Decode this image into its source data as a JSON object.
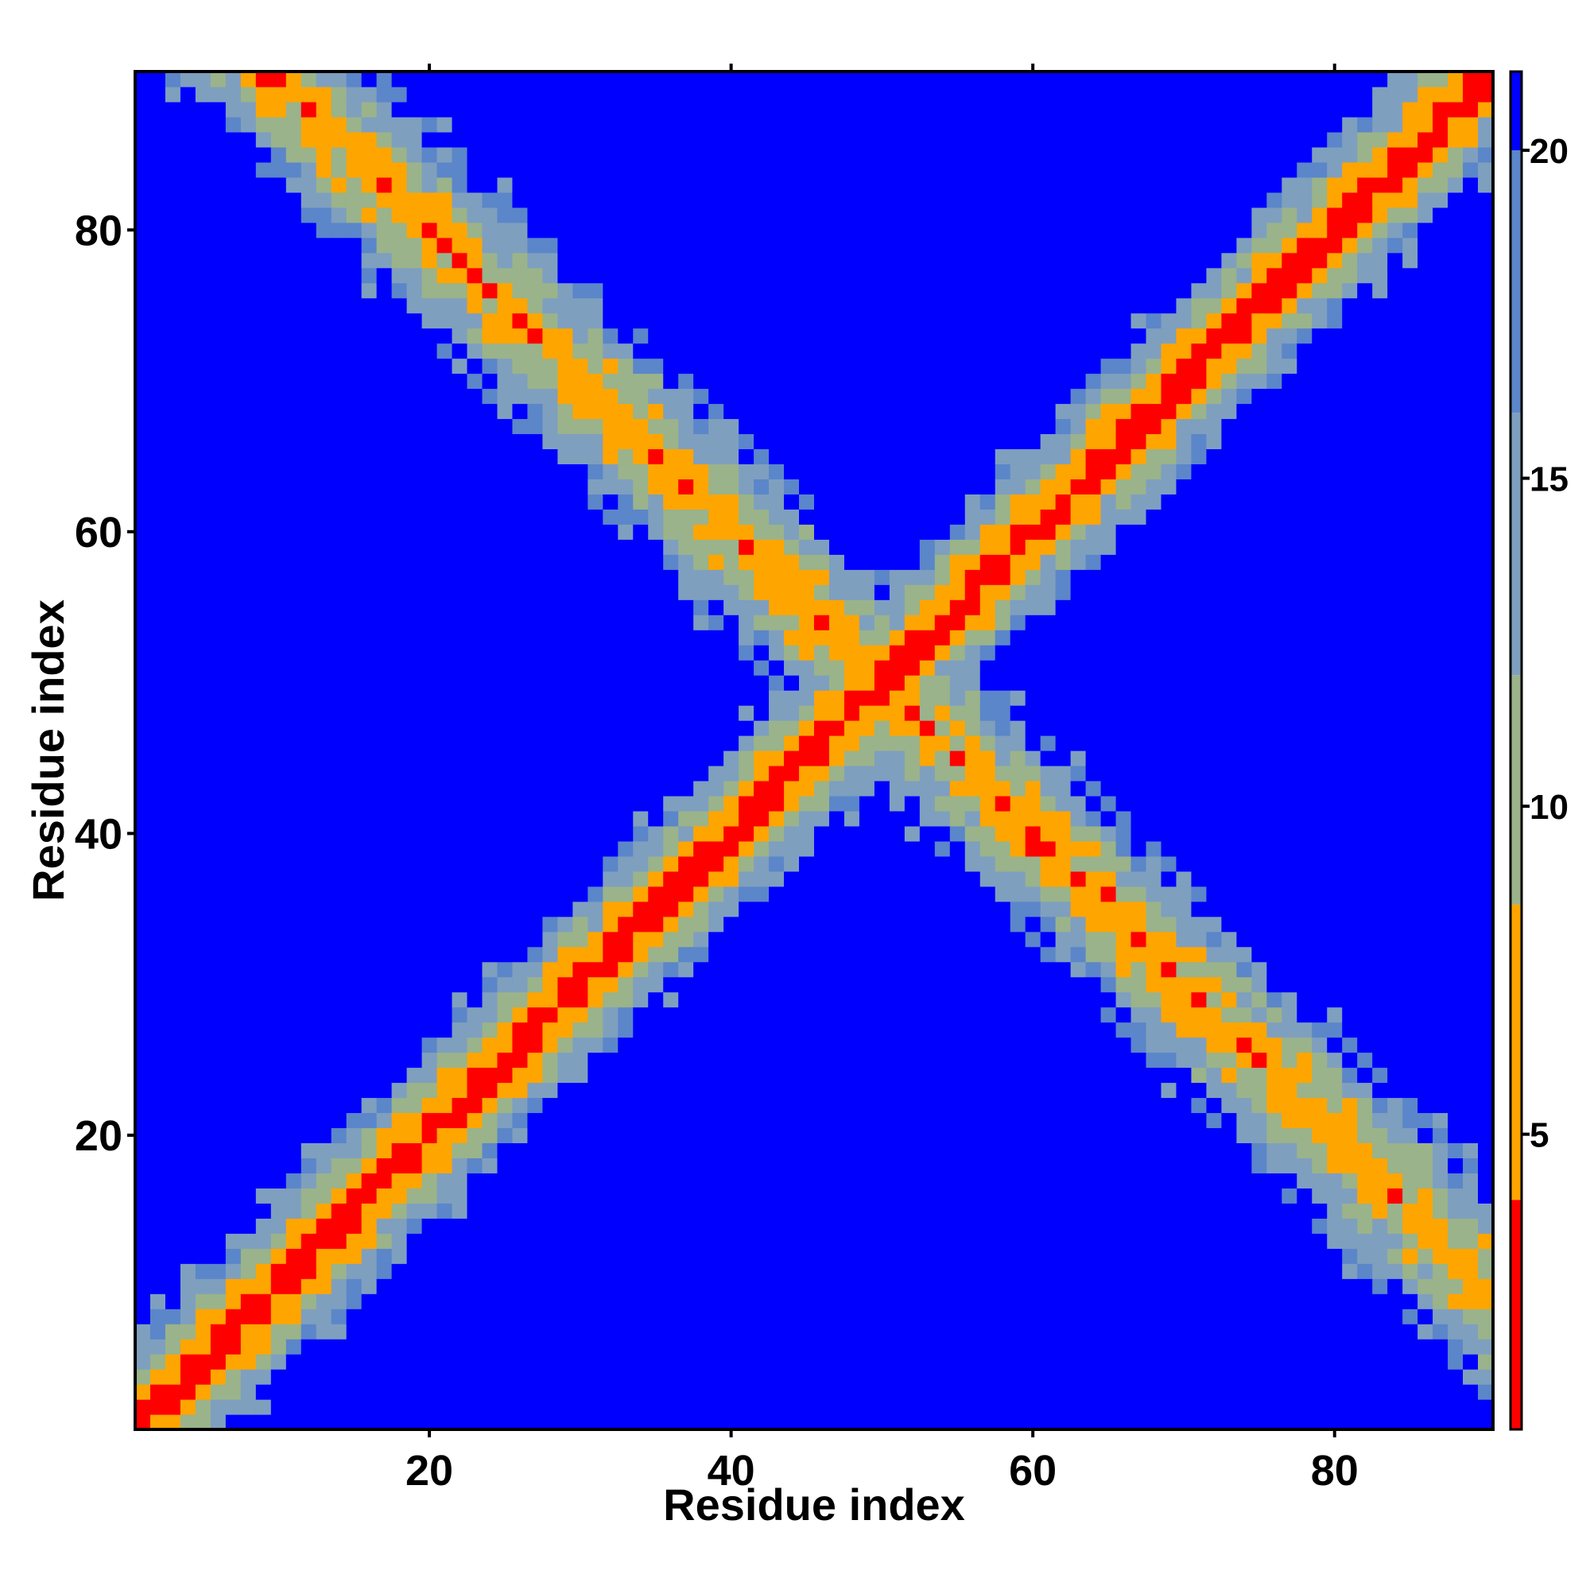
{
  "chart_data": {
    "type": "heatmap",
    "title": "",
    "xlabel": "Residue index",
    "ylabel": "Residue index",
    "n_residues": 90,
    "xlim": [
      0.5,
      90.5
    ],
    "ylim": [
      0.5,
      90.5
    ],
    "x_ticks": [
      20,
      40,
      60,
      80
    ],
    "y_ticks": [
      20,
      40,
      60,
      80
    ],
    "x_tick_labels": [
      "20",
      "40",
      "60",
      "80"
    ],
    "y_tick_labels": [
      "20",
      "40",
      "60",
      "80"
    ],
    "value_range": [
      0.5,
      21.2
    ],
    "colorbar": {
      "ticks": [
        5,
        10,
        15,
        20
      ],
      "labels": [
        "5",
        "10",
        "15",
        "20"
      ],
      "placement": "right",
      "segments": [
        {
          "from": 0.5,
          "to": 4.0,
          "color": "#ff0000"
        },
        {
          "from": 4.0,
          "to": 8.5,
          "color": "#ffa500"
        },
        {
          "from": 8.5,
          "to": 12.0,
          "color": "#9ab38a"
        },
        {
          "from": 12.0,
          "to": 16.0,
          "color": "#7f9fbf"
        },
        {
          "from": 16.0,
          "to": 20.0,
          "color": "#5b86c9"
        },
        {
          "from": 20.0,
          "to": 21.2,
          "color": "#0000ff"
        }
      ]
    },
    "description_of_structure": {
      "main_diagonal": "distance < 4 (red) along i = j",
      "near_diagonal": "distance 4-8.5 (orange) at |i-j| = 1-2",
      "antidiagonal": "close contacts between residues i and 100 - i, crossing near residue 50",
      "far_regions": "distance > 20 (blue) for well-separated pairs"
    },
    "grid": false,
    "legend": "colorbar on right"
  }
}
